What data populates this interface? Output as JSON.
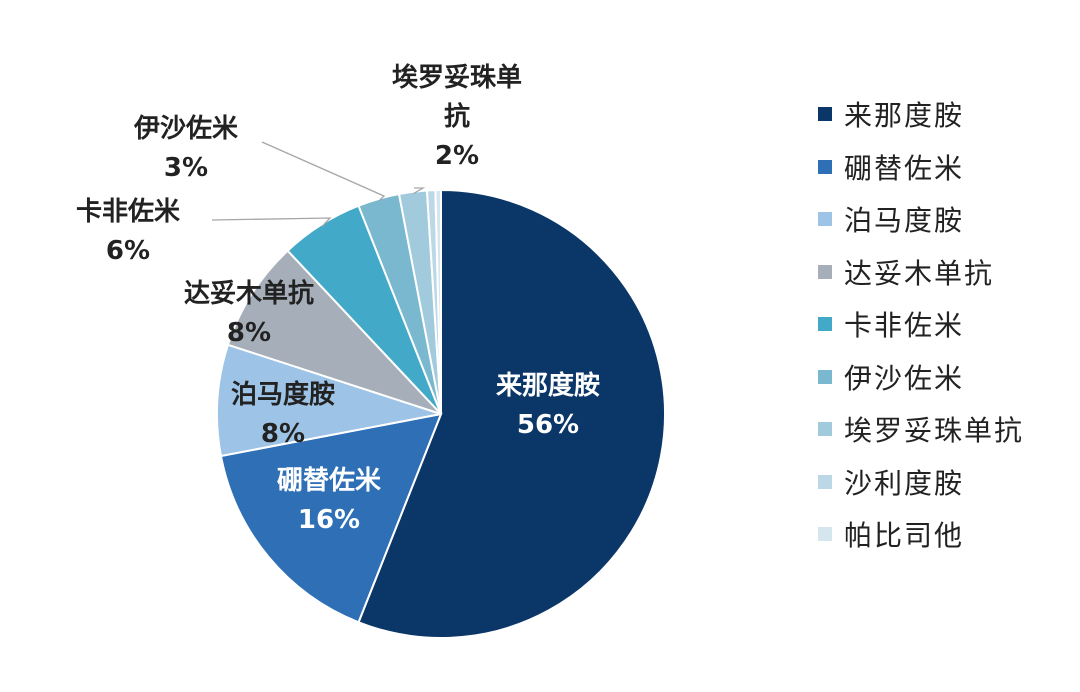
{
  "chart_data": {
    "type": "pie",
    "title": "",
    "slices": [
      {
        "name": "来那度胺",
        "value": 56,
        "display": "56%",
        "color": "#0b3668"
      },
      {
        "name": "硼替佐米",
        "value": 16,
        "display": "16%",
        "color": "#2e6fb6"
      },
      {
        "name": "泊马度胺",
        "value": 8,
        "display": "8%",
        "color": "#9dc3e6"
      },
      {
        "name": "达妥木单抗",
        "value": 8,
        "display": "8%",
        "color": "#a6aeb9"
      },
      {
        "name": "卡非佐米",
        "value": 6,
        "display": "6%",
        "color": "#43a9c9"
      },
      {
        "name": "伊沙佐米",
        "value": 3,
        "display": "3%",
        "color": "#79b8cf"
      },
      {
        "name": "埃罗妥珠单抗",
        "value": 2,
        "display": "2%",
        "color": "#a2cadd"
      },
      {
        "name": "沙利度胺",
        "value": 0.6,
        "display": "",
        "color": "#bcd8e6"
      },
      {
        "name": "帕比司他",
        "value": 0.4,
        "display": "",
        "color": "#d5e6ef"
      }
    ],
    "legend_position": "right"
  }
}
